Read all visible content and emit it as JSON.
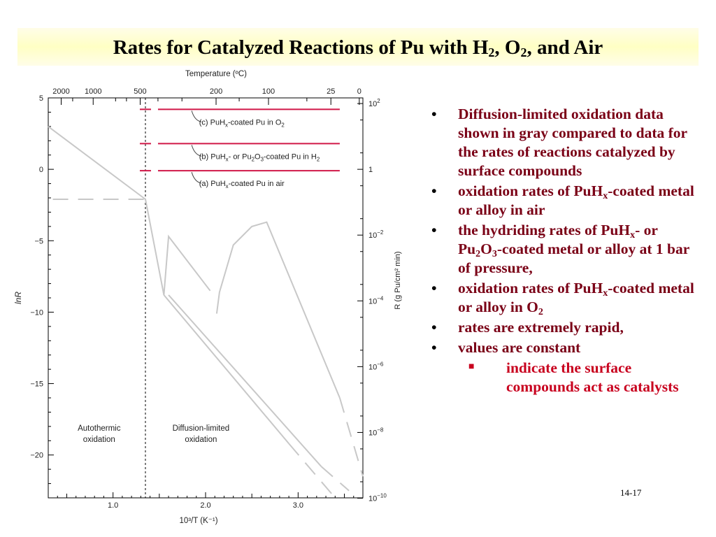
{
  "slide": {
    "title_parts": {
      "a": "Rates for Catalyzed Reactions of Pu with H",
      "sub1": "2",
      "b": ", O",
      "sub2": "2",
      "c": ", and Air"
    },
    "page_number": "14-17"
  },
  "bullets": [
    {
      "text": "Diffusion-limited oxidation data shown in gray compared to data for the rates of reactions catalyzed by surface compounds"
    },
    {
      "parts": [
        "oxidation rates of PuH",
        "x",
        "-coated metal or alloy in air"
      ]
    },
    {
      "parts": [
        "the hydriding rates of PuH",
        "x",
        "- or Pu",
        "2",
        "O",
        "3",
        "-coated metal or alloy at 1 bar of pressure,"
      ]
    },
    {
      "parts": [
        "oxidation rates of PuH",
        "x",
        "-coated metal or alloy in O",
        "2"
      ]
    },
    {
      "text": "rates are extremely rapid,"
    },
    {
      "text": "values are constant"
    }
  ],
  "sub_bullet": {
    "text": "indicate the surface compounds act as catalysts"
  },
  "chart_data": {
    "type": "line",
    "xlabel": "10³/T (K⁻¹)",
    "ylabel_left": "lnR",
    "ylabel_right": "R (g Pu/cm² min)",
    "top_axis_label": "Temperature (ºC)",
    "xlim": [
      0.3,
      3.7
    ],
    "ylim": [
      -23,
      5
    ],
    "x_ticks": [
      {
        "v": 1.0,
        "l": "1.0"
      },
      {
        "v": 2.0,
        "l": "2.0"
      },
      {
        "v": 3.0,
        "l": "3.0"
      }
    ],
    "y_ticks": [
      {
        "v": 5,
        "l": "5"
      },
      {
        "v": 0,
        "l": "0"
      },
      {
        "v": -5,
        "l": "−5"
      },
      {
        "v": -10,
        "l": "−10"
      },
      {
        "v": -15,
        "l": "−15"
      },
      {
        "v": -20,
        "l": "−20"
      }
    ],
    "top_ticks": [
      {
        "c": 2000,
        "l": "2000"
      },
      {
        "c": 1000,
        "l": "1000"
      },
      {
        "c": 500,
        "l": "500"
      },
      {
        "c": 200,
        "l": "200"
      },
      {
        "c": 100,
        "l": "100"
      },
      {
        "c": 25,
        "l": "25"
      },
      {
        "c": 0,
        "l": "0"
      }
    ],
    "right_ticks": [
      {
        "base": "10",
        "exp": "2",
        "v": 2
      },
      {
        "base": "1",
        "exp": "",
        "v": 0
      },
      {
        "base": "10",
        "exp": "−2",
        "v": -2
      },
      {
        "base": "10",
        "exp": "−4",
        "v": -4
      },
      {
        "base": "10",
        "exp": "−6",
        "v": -6
      },
      {
        "base": "10",
        "exp": "−8",
        "v": -8
      },
      {
        "base": "10",
        "exp": "−10",
        "v": -10
      }
    ],
    "catalyzed_series": [
      {
        "name": "(c) PuHx-coated Pu in O2",
        "label_parts": [
          "(c) PuH",
          "x",
          "-coated Pu in O",
          "2"
        ],
        "y": 4.2
      },
      {
        "name": "(b) PuHx- or Pu2O3-coated Pu in H2",
        "label_parts": [
          "(b) PuH",
          "x",
          "- or Pu",
          "2",
          "O",
          "3",
          "-coated Pu in H",
          "2"
        ],
        "y": 1.8
      },
      {
        "name": "(a) PuHx-coated Pu in air",
        "label_parts": [
          "(a) PuH",
          "x",
          "-coated Pu in air"
        ],
        "y": -0.1
      }
    ],
    "gray_curves": [
      {
        "points": [
          [
            0.3,
            3.0
          ],
          [
            1.35,
            -2.1
          ]
        ]
      },
      {
        "points": [
          [
            0.35,
            -2.1
          ],
          [
            1.35,
            -2.1
          ]
        ],
        "dashed": true
      },
      {
        "points": [
          [
            1.35,
            -2.1
          ],
          [
            1.55,
            -8.8
          ],
          [
            1.6,
            -4.7
          ],
          [
            2.05,
            -8.5
          ]
        ]
      },
      {
        "points": [
          [
            2.12,
            -10.1
          ],
          [
            2.15,
            -8.6
          ],
          [
            2.3,
            -5.3
          ],
          [
            2.5,
            -4.0
          ],
          [
            2.66,
            -3.7
          ],
          [
            3.45,
            -16.0
          ]
        ]
      },
      {
        "points": [
          [
            3.45,
            -16.0
          ],
          [
            3.7,
            -21.5
          ]
        ],
        "dashed": true
      },
      {
        "points": [
          [
            1.55,
            -8.8
          ],
          [
            2.9,
            -19.2
          ]
        ]
      },
      {
        "points": [
          [
            2.9,
            -19.2
          ],
          [
            3.4,
            -23.0
          ]
        ],
        "dashed": true
      },
      {
        "points": [
          [
            1.6,
            -8.8
          ],
          [
            3.25,
            -20.8
          ]
        ]
      },
      {
        "points": [
          [
            3.25,
            -20.8
          ],
          [
            3.55,
            -22.5
          ]
        ],
        "dashed": true
      }
    ],
    "divider_x": 1.35,
    "regions": [
      {
        "lines": [
          "Autothermic",
          "oxidation"
        ],
        "x": 0.85,
        "y": -18.3
      },
      {
        "lines": [
          "Diffusion-limited",
          "oxidation"
        ],
        "x": 1.95,
        "y": -18.3
      }
    ]
  }
}
